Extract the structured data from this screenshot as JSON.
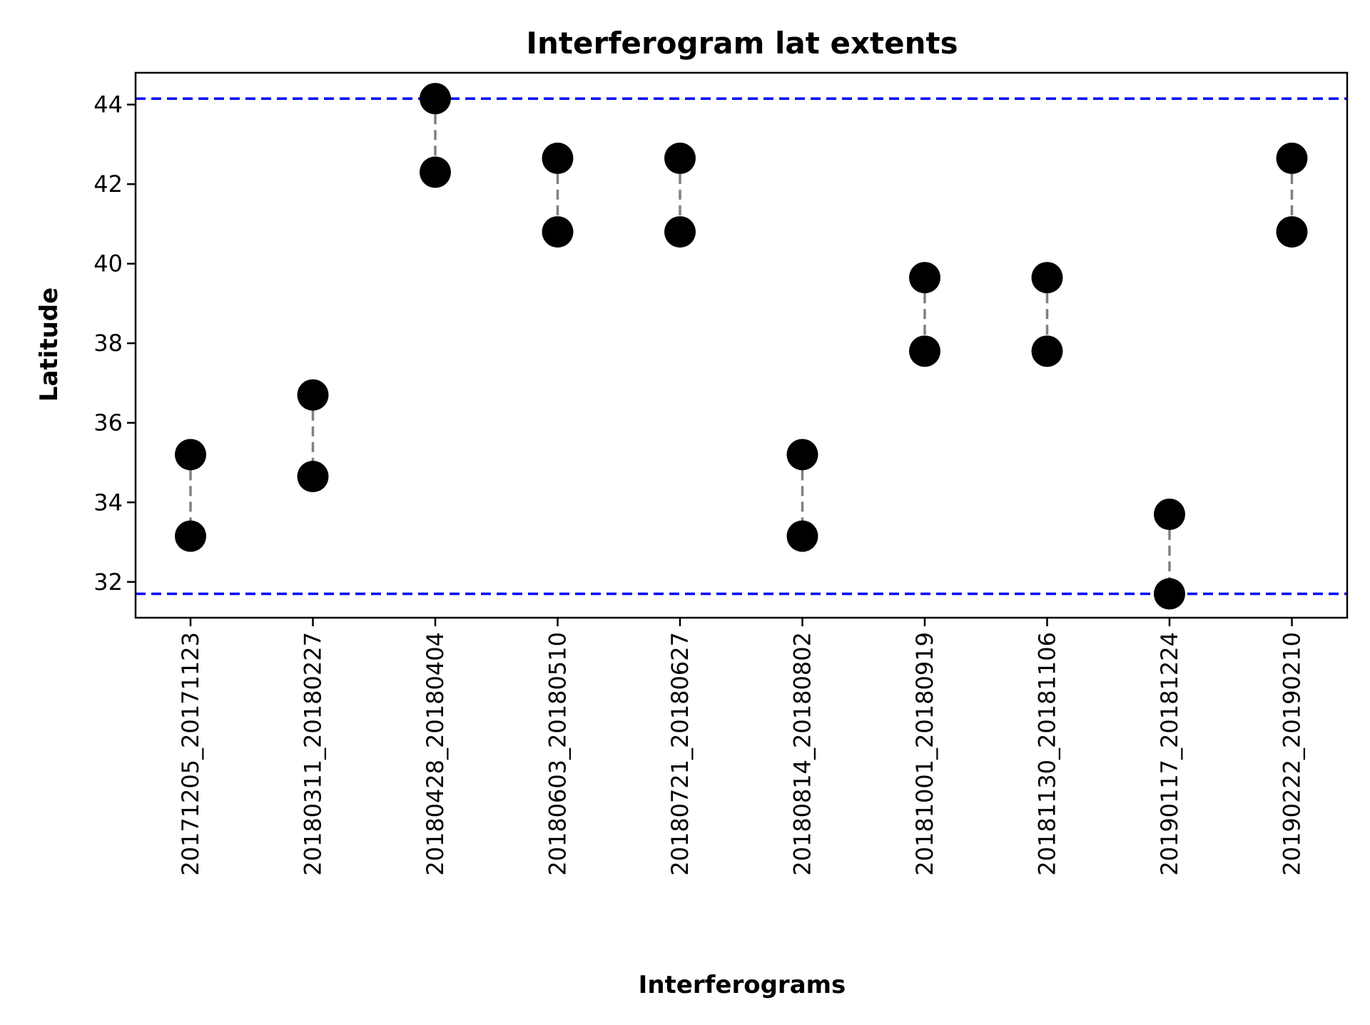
{
  "chart_data": {
    "type": "scatter",
    "title": "Interferogram lat extents",
    "xlabel": "Interferograms",
    "ylabel": "Latitude",
    "ylim": [
      31.1,
      44.8
    ],
    "yticks": [
      32,
      34,
      36,
      38,
      40,
      42,
      44
    ],
    "categories": [
      "20171205_20171123",
      "20180311_20180227",
      "20180428_20180404",
      "20180603_20180510",
      "20180721_20180627",
      "20180814_20180802",
      "20181001_20180919",
      "20181130_20181106",
      "20190117_20181224",
      "20190222_20190210"
    ],
    "series": [
      {
        "values": [
          35.2,
          36.7,
          44.15,
          42.65,
          42.65,
          35.2,
          39.65,
          39.65,
          33.7,
          42.65
        ]
      },
      {
        "values": [
          33.15,
          34.65,
          42.3,
          40.8,
          40.8,
          33.15,
          37.8,
          37.8,
          31.7,
          40.8
        ]
      }
    ],
    "hlines": [
      44.15,
      31.7
    ],
    "grid": false,
    "colors": {
      "points": "#000000",
      "connector": "#808080",
      "bounds": "#0000ff"
    }
  }
}
